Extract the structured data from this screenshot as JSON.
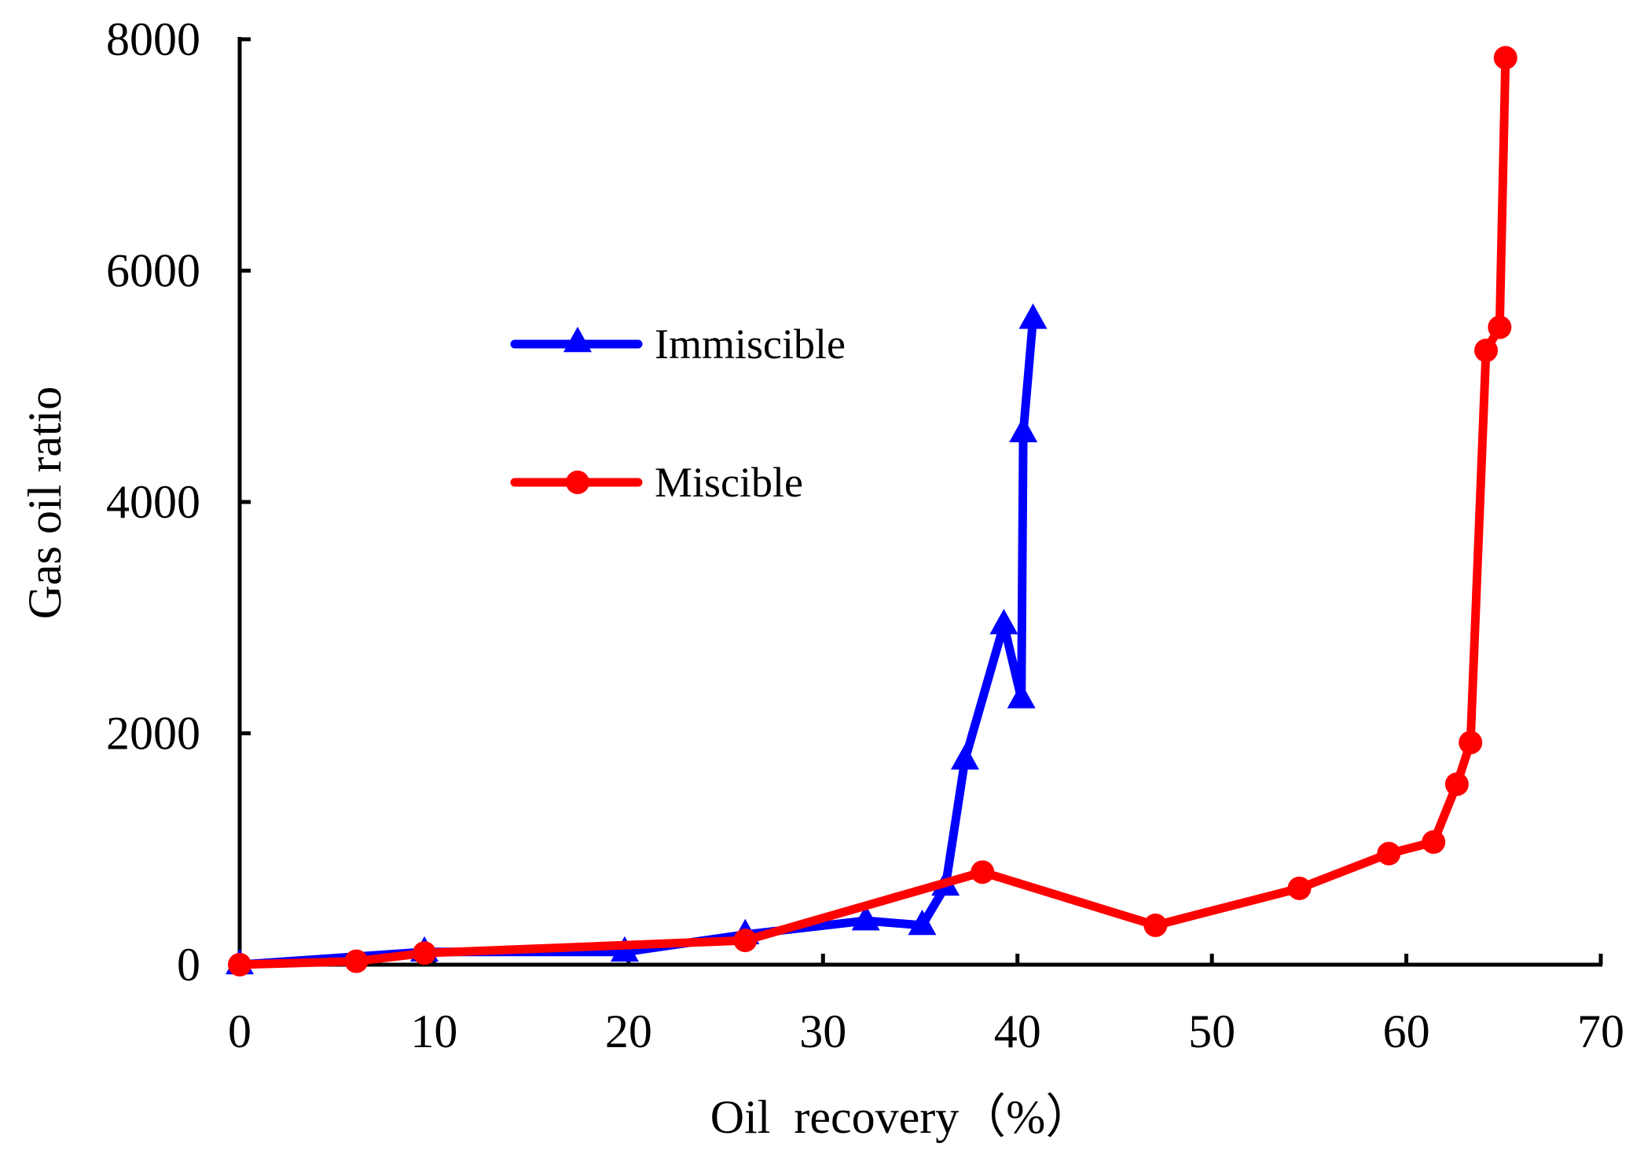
{
  "chart_data": {
    "type": "line",
    "title": "",
    "xlabel": "Oil  recovery（%）",
    "ylabel": "Gas oil ratio",
    "xlim": [
      0,
      70
    ],
    "ylim": [
      0,
      8000
    ],
    "xticks": [
      0,
      10,
      20,
      30,
      40,
      50,
      60,
      70
    ],
    "yticks": [
      0,
      2000,
      4000,
      6000,
      8000
    ],
    "xtick_labels": [
      "0",
      "10",
      "20",
      "30",
      "40",
      "50",
      "60",
      "70"
    ],
    "ytick_labels": [
      "0",
      "2000",
      "4000",
      "6000",
      "8000"
    ],
    "grid": false,
    "legend_position": "upper-center",
    "series": [
      {
        "name": "Immiscible",
        "color": "#0000ff",
        "marker": "triangle",
        "points": [
          {
            "x": 0,
            "y": 0
          },
          {
            "x": 9.5,
            "y": 110
          },
          {
            "x": 19.8,
            "y": 110
          },
          {
            "x": 26,
            "y": 260
          },
          {
            "x": 32.2,
            "y": 380
          },
          {
            "x": 35.1,
            "y": 340
          },
          {
            "x": 36.3,
            "y": 680
          },
          {
            "x": 37.3,
            "y": 1770
          },
          {
            "x": 39.3,
            "y": 2940
          },
          {
            "x": 40.2,
            "y": 2300
          },
          {
            "x": 40.3,
            "y": 4600
          },
          {
            "x": 40.8,
            "y": 5580
          }
        ]
      },
      {
        "name": "Miscible",
        "color": "#ff0000",
        "marker": "circle",
        "points": [
          {
            "x": 0,
            "y": 0
          },
          {
            "x": 6,
            "y": 30
          },
          {
            "x": 9.5,
            "y": 100
          },
          {
            "x": 26,
            "y": 210
          },
          {
            "x": 38.2,
            "y": 800
          },
          {
            "x": 47.1,
            "y": 340
          },
          {
            "x": 54.5,
            "y": 660
          },
          {
            "x": 59.1,
            "y": 960
          },
          {
            "x": 61.4,
            "y": 1060
          },
          {
            "x": 62.6,
            "y": 1560
          },
          {
            "x": 63.3,
            "y": 1920
          },
          {
            "x": 64.1,
            "y": 5310
          },
          {
            "x": 64.8,
            "y": 5510
          },
          {
            "x": 65.1,
            "y": 7840
          }
        ]
      }
    ]
  }
}
